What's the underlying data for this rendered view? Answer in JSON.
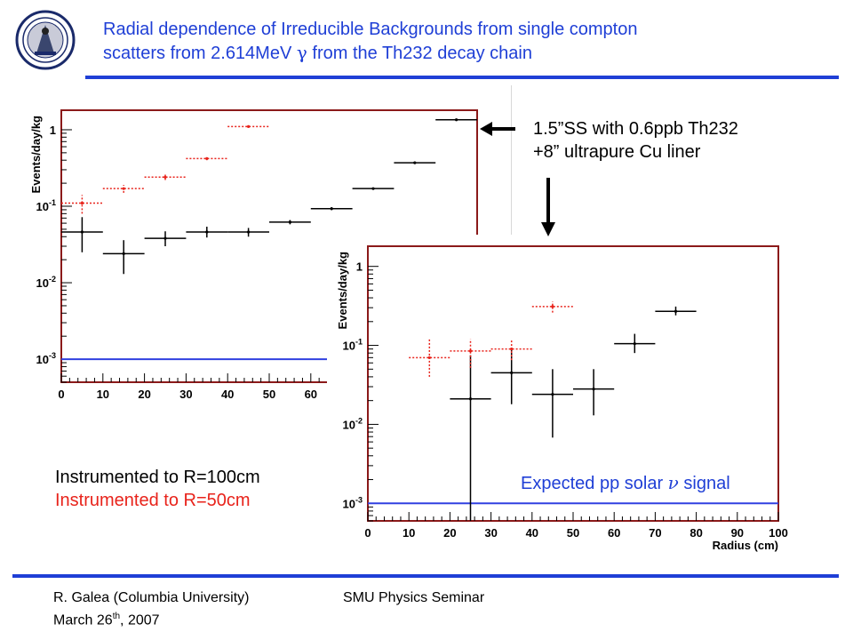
{
  "title": {
    "line1": "Radial dependence of Irreducible Backgrounds from single compton",
    "line2_pre": "scatters from 2.614MeV ",
    "line2_gamma": "γ",
    "line2_post": " from the Th232 decay chain"
  },
  "annotation": {
    "line1": "1.5”SS with 0.6ppb Th232",
    "line2": "+8” ultrapure  Cu liner"
  },
  "legend": {
    "black_label": "Instrumented to R=100cm",
    "red_label": "Instrumented to R=50cm",
    "black_color": "#000000",
    "red_color": "#e8231b"
  },
  "expected_signal": {
    "pre": "Expected pp solar ",
    "nu": "ν",
    "post": " signal",
    "color": "#1f3fd6"
  },
  "footer": {
    "author": "R. Galea (Columbia University)",
    "date_pre": "March 26",
    "date_sup": "th",
    "date_post": ", 2007",
    "seminar": "SMU Physics Seminar"
  },
  "colors": {
    "accent": "#1f3fd6",
    "frame": "#8b1a1a",
    "signal_line": "#3040e0"
  },
  "chart_data": [
    {
      "type": "scatter",
      "ylabel": "Events/day/kg",
      "yscale": "log",
      "xlim": [
        0,
        100
      ],
      "ylim": [
        0.0005,
        1.8
      ],
      "x_ticks": [
        "0",
        "10",
        "20",
        "30",
        "40",
        "50",
        "60"
      ],
      "y_ticks": [
        "1",
        "10^-1",
        "10^-2",
        "10^-3"
      ],
      "signal_level": 0.001,
      "series": [
        {
          "color": "black",
          "points": [
            {
              "x": 5,
              "y": 0.046,
              "xerr": 5,
              "ylo": 0.025,
              "yhi": 0.072
            },
            {
              "x": 15,
              "y": 0.024,
              "xerr": 5,
              "ylo": 0.013,
              "yhi": 0.036
            },
            {
              "x": 25,
              "y": 0.038,
              "xerr": 5,
              "ylo": 0.03,
              "yhi": 0.047
            },
            {
              "x": 35,
              "y": 0.046,
              "xerr": 5,
              "ylo": 0.039,
              "yhi": 0.054
            },
            {
              "x": 45,
              "y": 0.046,
              "xerr": 5,
              "ylo": 0.04,
              "yhi": 0.052
            },
            {
              "x": 55,
              "y": 0.062,
              "xerr": 5,
              "ylo": 0.058,
              "yhi": 0.066
            },
            {
              "x": 65,
              "y": 0.093,
              "xerr": 5,
              "ylo": 0.089,
              "yhi": 0.097
            },
            {
              "x": 75,
              "y": 0.17,
              "xerr": 5,
              "ylo": 0.165,
              "yhi": 0.175
            },
            {
              "x": 85,
              "y": 0.37,
              "xerr": 5,
              "ylo": 0.365,
              "yhi": 0.375
            },
            {
              "x": 95,
              "y": 1.35,
              "xerr": 5,
              "ylo": 1.34,
              "yhi": 1.36
            }
          ]
        },
        {
          "color": "red",
          "points": [
            {
              "x": 5,
              "y": 0.11,
              "xerr": 5,
              "ylo": 0.08,
              "yhi": 0.14
            },
            {
              "x": 15,
              "y": 0.17,
              "xerr": 5,
              "ylo": 0.15,
              "yhi": 0.19
            },
            {
              "x": 25,
              "y": 0.24,
              "xerr": 5,
              "ylo": 0.22,
              "yhi": 0.26
            },
            {
              "x": 35,
              "y": 0.42,
              "xerr": 5,
              "ylo": 0.4,
              "yhi": 0.44
            },
            {
              "x": 45,
              "y": 1.1,
              "xerr": 5,
              "ylo": 1.08,
              "yhi": 1.12
            }
          ]
        }
      ]
    },
    {
      "type": "scatter",
      "ylabel": "Events/day/kg",
      "xlabel": "Radius (cm)",
      "yscale": "log",
      "xlim": [
        0,
        100
      ],
      "ylim": [
        0.0006,
        1.8
      ],
      "x_ticks": [
        "0",
        "10",
        "20",
        "30",
        "40",
        "50",
        "60",
        "70",
        "80",
        "90",
        "100"
      ],
      "y_ticks": [
        "1",
        "10^-1",
        "10^-2",
        "10^-3"
      ],
      "signal_level": 0.001,
      "series": [
        {
          "color": "black",
          "points": [
            {
              "x": 25,
              "y": 0.021,
              "xerr": 5,
              "ylo": 0.0006,
              "yhi": 0.075
            },
            {
              "x": 35,
              "y": 0.045,
              "xerr": 5,
              "ylo": 0.018,
              "yhi": 0.09
            },
            {
              "x": 45,
              "y": 0.024,
              "xerr": 5,
              "ylo": 0.0068,
              "yhi": 0.05
            },
            {
              "x": 55,
              "y": 0.028,
              "xerr": 5,
              "ylo": 0.013,
              "yhi": 0.05
            },
            {
              "x": 65,
              "y": 0.105,
              "xerr": 5,
              "ylo": 0.08,
              "yhi": 0.14
            },
            {
              "x": 75,
              "y": 0.27,
              "xerr": 5,
              "ylo": 0.24,
              "yhi": 0.31
            }
          ]
        },
        {
          "color": "red",
          "points": [
            {
              "x": 15,
              "y": 0.07,
              "xerr": 5,
              "ylo": 0.04,
              "yhi": 0.12
            },
            {
              "x": 25,
              "y": 0.085,
              "xerr": 5,
              "ylo": 0.052,
              "yhi": 0.12
            },
            {
              "x": 35,
              "y": 0.09,
              "xerr": 5,
              "ylo": 0.065,
              "yhi": 0.12
            },
            {
              "x": 45,
              "y": 0.31,
              "xerr": 5,
              "ylo": 0.26,
              "yhi": 0.36
            }
          ]
        }
      ]
    }
  ]
}
